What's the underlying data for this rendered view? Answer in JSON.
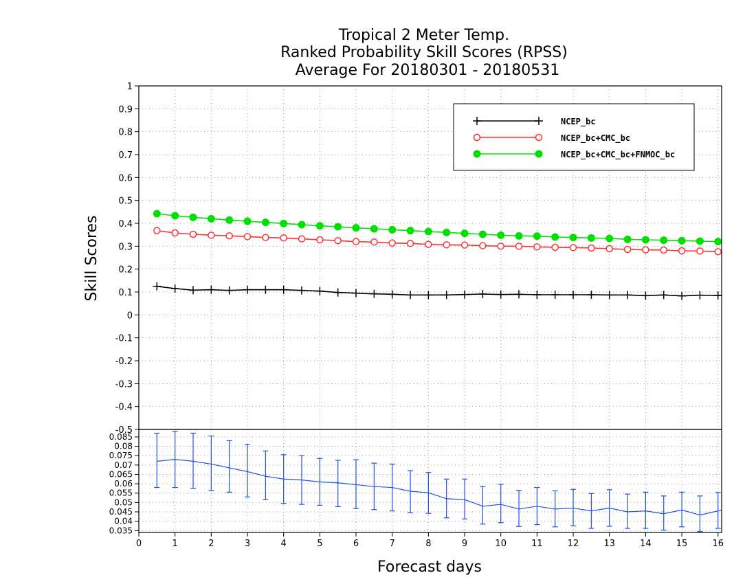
{
  "chart_data": [
    {
      "type": "line",
      "title": [
        "Tropical 2 Meter Temp.",
        "Ranked Probability Skill Scores (RPSS)",
        "Average For 20180301 - 20180531"
      ],
      "ylabel": "Skill Scores",
      "xlim": [
        0,
        16.1
      ],
      "ylim": [
        -0.5,
        1
      ],
      "yticks": [
        "1",
        "0.9",
        "0.8",
        "0.7",
        "0.6",
        "0.5",
        "0.4",
        "0.3",
        "0.2",
        "0.1",
        "0",
        "-0.1",
        "-0.2",
        "-0.3",
        "-0.4",
        "-0.5"
      ],
      "grid": true,
      "legend_position": "top-right",
      "x": [
        0.5,
        1,
        1.5,
        2,
        2.5,
        3,
        3.5,
        4,
        4.5,
        5,
        5.5,
        6,
        6.5,
        7,
        7.5,
        8,
        8.5,
        9,
        9.5,
        10,
        10.5,
        11,
        11.5,
        12,
        12.5,
        13,
        13.5,
        14,
        14.5,
        15,
        15.5,
        16
      ],
      "series": [
        {
          "name": "NCEP_bc",
          "color": "#000000",
          "marker": "plus",
          "values": [
            0.125,
            0.115,
            0.108,
            0.11,
            0.107,
            0.11,
            0.11,
            0.11,
            0.107,
            0.104,
            0.098,
            0.095,
            0.092,
            0.09,
            0.087,
            0.087,
            0.087,
            0.089,
            0.091,
            0.089,
            0.09,
            0.088,
            0.088,
            0.088,
            0.088,
            0.087,
            0.087,
            0.084,
            0.087,
            0.083,
            0.086,
            0.085
          ]
        },
        {
          "name": "NCEP_bc+CMC_bc",
          "color": "#ff3030",
          "marker": "open-circle",
          "values": [
            0.368,
            0.358,
            0.352,
            0.348,
            0.345,
            0.342,
            0.338,
            0.336,
            0.332,
            0.328,
            0.324,
            0.32,
            0.318,
            0.314,
            0.312,
            0.308,
            0.306,
            0.305,
            0.302,
            0.3,
            0.3,
            0.297,
            0.295,
            0.294,
            0.292,
            0.289,
            0.286,
            0.284,
            0.283,
            0.28,
            0.279,
            0.276
          ]
        },
        {
          "name": "NCEP_bc+CMC_bc+FNMOC_bc",
          "color": "#00e000",
          "marker": "filled-circle",
          "values": [
            0.442,
            0.433,
            0.426,
            0.42,
            0.414,
            0.409,
            0.404,
            0.399,
            0.394,
            0.389,
            0.385,
            0.38,
            0.376,
            0.372,
            0.368,
            0.364,
            0.36,
            0.356,
            0.352,
            0.348,
            0.345,
            0.344,
            0.34,
            0.338,
            0.336,
            0.334,
            0.33,
            0.328,
            0.326,
            0.324,
            0.322,
            0.32
          ]
        }
      ]
    },
    {
      "type": "line",
      "xlabel": "Forecast days",
      "xlim": [
        0,
        16.1
      ],
      "ylim": [
        0.034,
        0.089
      ],
      "xticks": [
        "0",
        "1",
        "2",
        "3",
        "4",
        "5",
        "6",
        "7",
        "8",
        "9",
        "10",
        "11",
        "12",
        "13",
        "14",
        "15",
        "16"
      ],
      "yticks": [
        "0.085",
        "0.08",
        "0.075",
        "0.07",
        "0.065",
        "0.06",
        "0.055",
        "0.05",
        "0.045",
        "0.04",
        "0.035"
      ],
      "grid": true,
      "color": "#2050e0",
      "x": [
        0.5,
        1,
        1.5,
        2,
        2.5,
        3,
        3.5,
        4,
        4.5,
        5,
        5.5,
        6,
        6.5,
        7,
        7.5,
        8,
        8.5,
        9,
        9.5,
        10,
        10.5,
        11,
        11.5,
        12,
        12.5,
        13,
        13.5,
        14,
        14.5,
        15,
        15.5,
        16
      ],
      "values": [
        0.072,
        0.073,
        0.072,
        0.0705,
        0.0685,
        0.0665,
        0.064,
        0.0625,
        0.062,
        0.061,
        0.0605,
        0.0595,
        0.0585,
        0.058,
        0.056,
        0.0552,
        0.052,
        0.0515,
        0.048,
        0.049,
        0.0465,
        0.048,
        0.0465,
        0.047,
        0.0455,
        0.047,
        0.045,
        0.0455,
        0.044,
        0.046,
        0.0433,
        0.0455
      ],
      "error_low": [
        0.058,
        0.058,
        0.0575,
        0.0565,
        0.0555,
        0.053,
        0.0515,
        0.0495,
        0.049,
        0.0485,
        0.0478,
        0.0468,
        0.0462,
        0.0455,
        0.0445,
        0.0442,
        0.0418,
        0.0412,
        0.0385,
        0.0392,
        0.0372,
        0.0382,
        0.037,
        0.0375,
        0.0362,
        0.0373,
        0.0362,
        0.0362,
        0.0352,
        0.037,
        0.0345,
        0.0362
      ],
      "error_high": [
        0.087,
        0.088,
        0.087,
        0.0855,
        0.083,
        0.081,
        0.0775,
        0.0755,
        0.075,
        0.0735,
        0.0725,
        0.0728,
        0.071,
        0.0705,
        0.067,
        0.066,
        0.0625,
        0.0625,
        0.0585,
        0.0598,
        0.0565,
        0.058,
        0.0562,
        0.057,
        0.0548,
        0.0568,
        0.0545,
        0.0555,
        0.0535,
        0.0555,
        0.0535,
        0.0553
      ]
    }
  ]
}
